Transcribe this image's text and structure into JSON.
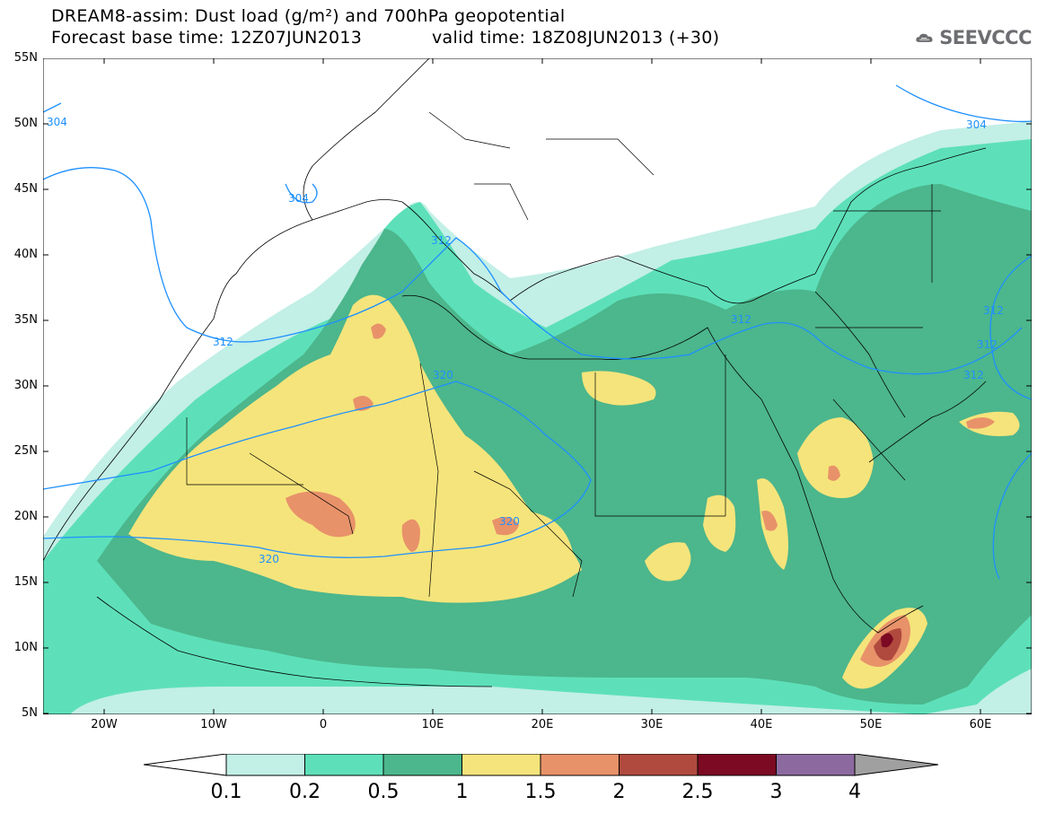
{
  "header": {
    "line1": "DREAM8-assim: Dust load (g/m²) and 700hPa geopotential",
    "line2a": "Forecast base time: 12Z07JUN2013",
    "line2b": "valid time: 18Z08JUN2013 (+30)",
    "logo": "SEEVCCC",
    "logo_icon": "cloud-icon"
  },
  "axes": {
    "lat_labels": [
      "55N",
      "50N",
      "45N",
      "40N",
      "35N",
      "30N",
      "25N",
      "20N",
      "15N",
      "10N",
      "5N"
    ],
    "lon_labels": [
      "20W",
      "10W",
      "0",
      "10E",
      "20E",
      "30E",
      "40E",
      "50E",
      "60E"
    ]
  },
  "contours": {
    "geopotential_labels": [
      "304",
      "304",
      "304",
      "312",
      "312",
      "312",
      "312",
      "312",
      "312",
      "320",
      "320",
      "320"
    ]
  },
  "legend": {
    "levels": [
      "0.1",
      "0.2",
      "0.5",
      "1",
      "1.5",
      "2",
      "2.5",
      "3",
      "4"
    ],
    "colors": [
      "#c2efe6",
      "#5de0b9",
      "#4cb68c",
      "#f5e47b",
      "#e8926a",
      "#b04a3e",
      "#7b0a22",
      "#8c6aa0",
      "#a0a0a0"
    ]
  }
}
